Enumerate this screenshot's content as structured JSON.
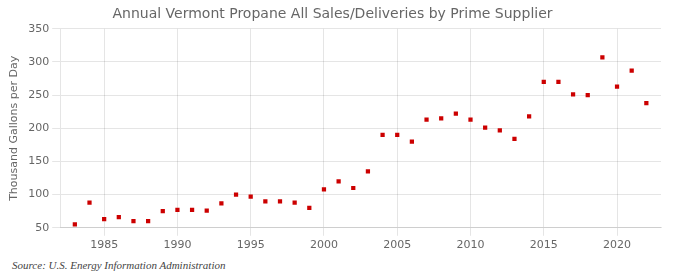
{
  "chart_data": {
    "type": "scatter",
    "title": "Annual Vermont Propane All Sales/Deliveries by Prime Supplier",
    "ylabel": "Thousand Gallons per Day",
    "annotation": "Source: U.S. Energy Information Administration",
    "x": [
      1983,
      1984,
      1985,
      1986,
      1987,
      1988,
      1989,
      1990,
      1991,
      1992,
      1993,
      1994,
      1995,
      1996,
      1997,
      1998,
      1999,
      2000,
      2001,
      2002,
      2003,
      2004,
      2005,
      2006,
      2007,
      2008,
      2009,
      2010,
      2011,
      2012,
      2013,
      2014,
      2015,
      2016,
      2017,
      2018,
      2019,
      2020,
      2021,
      2022
    ],
    "values": [
      55,
      88,
      63,
      66,
      60,
      60,
      75,
      77,
      77,
      76,
      87,
      100,
      97,
      90,
      90,
      88,
      80,
      108,
      120,
      110,
      135,
      190,
      190,
      180,
      213,
      215,
      222,
      213,
      201,
      197,
      184,
      218,
      270,
      270,
      251,
      250,
      307,
      263,
      287,
      238
    ],
    "color": "#cc0000",
    "marker": "square",
    "line_style": "none",
    "xlim": [
      1982,
      2023
    ],
    "xticks": [
      1985,
      1990,
      1995,
      2000,
      2005,
      2010,
      2015,
      2020
    ],
    "ylim": [
      50,
      350
    ],
    "yticks": [
      50,
      100,
      150,
      200,
      250,
      300,
      350
    ],
    "grid": true
  }
}
